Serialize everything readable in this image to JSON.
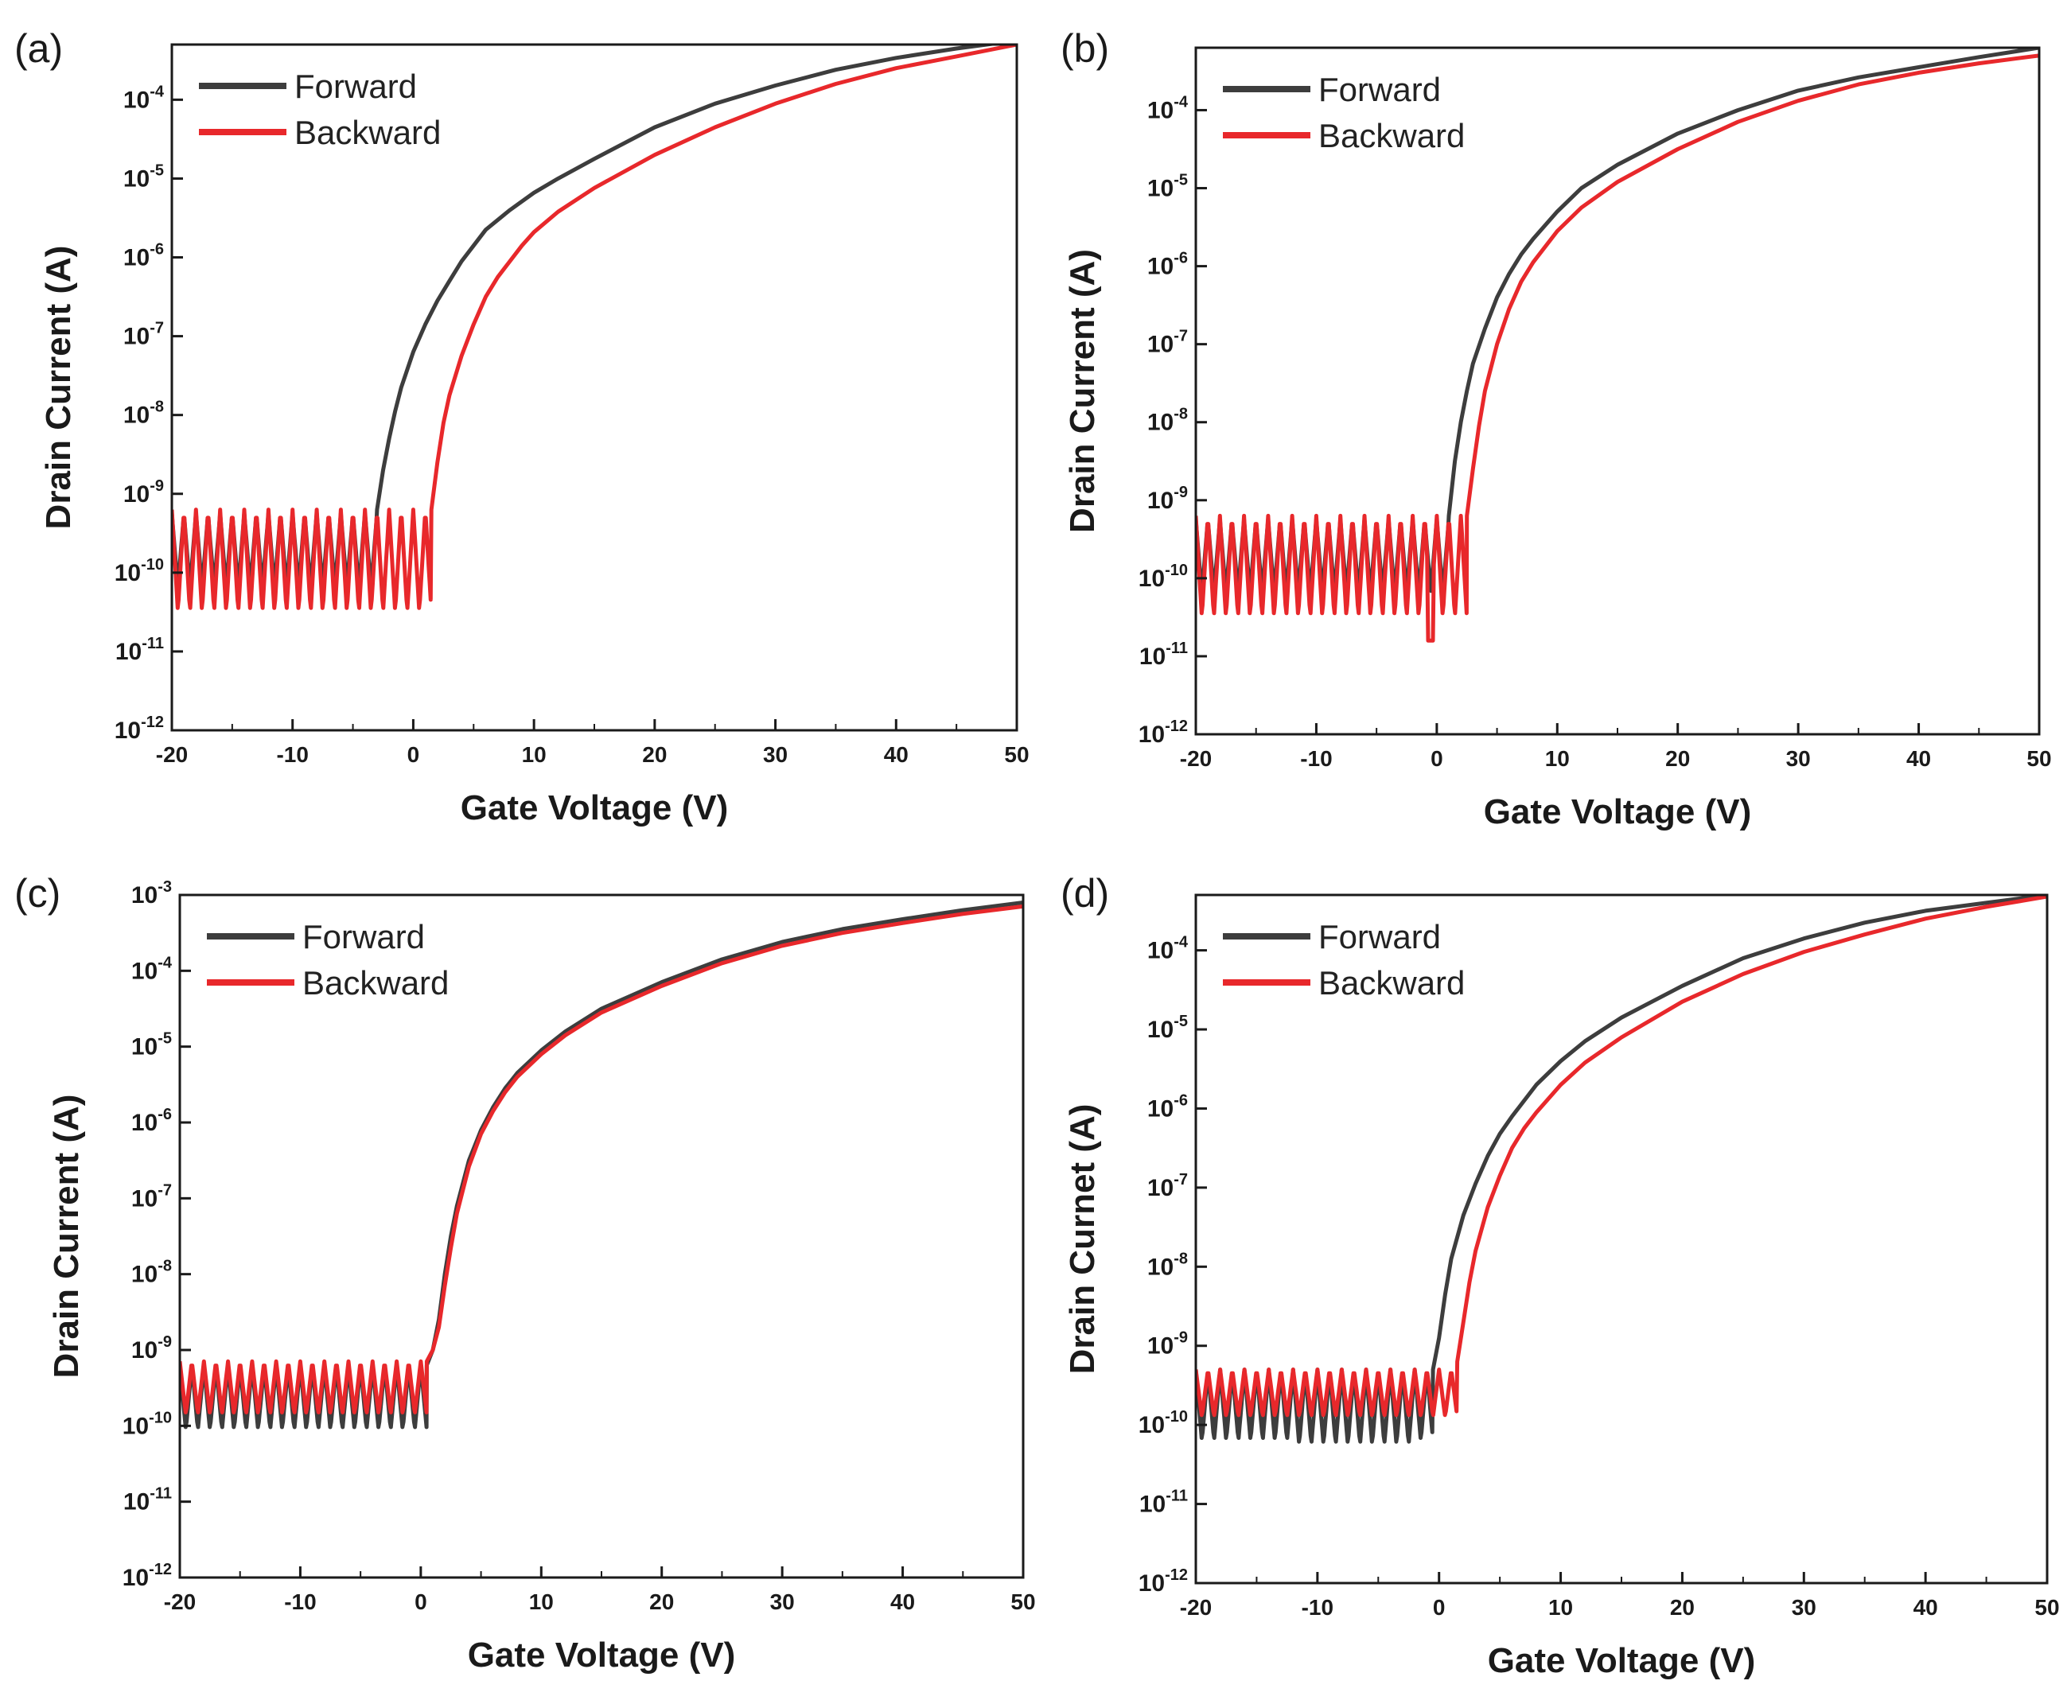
{
  "colors": {
    "forward": "#3d3d3d",
    "backward": "#e8282b",
    "axis": "#1a1a1a"
  },
  "chart_data": [
    {
      "type": "line",
      "panel_label": "(a)",
      "xlabel": "Gate Voltage (V)",
      "ylabel": "Drain Current (A)",
      "xlim": [
        -20,
        50
      ],
      "ylim_log10": [
        -12,
        -3.3
      ],
      "yscale": "log",
      "xticks": [
        -20,
        -10,
        0,
        10,
        20,
        30,
        40,
        50
      ],
      "yticks_exp": [
        -12,
        -11,
        -10,
        -9,
        -8,
        -7,
        -6,
        -5,
        -4
      ],
      "legend_position": "top-left",
      "series": [
        {
          "name": "Forward",
          "noise": {
            "x_end": -3,
            "low_log": -10.2,
            "high_log": -9.25,
            "period": 1.0
          },
          "x": [
            -3,
            -2.5,
            -2,
            -1.5,
            -1,
            0,
            1,
            2,
            3,
            4,
            5,
            6,
            8,
            10,
            12,
            15,
            20,
            25,
            30,
            35,
            40,
            45,
            50
          ],
          "y_log10": [
            -9.2,
            -8.7,
            -8.3,
            -7.95,
            -7.65,
            -7.2,
            -6.85,
            -6.55,
            -6.3,
            -6.05,
            -5.85,
            -5.65,
            -5.4,
            -5.18,
            -5.0,
            -4.75,
            -4.35,
            -4.05,
            -3.82,
            -3.62,
            -3.47,
            -3.35,
            -3.25
          ]
        },
        {
          "name": "Backward",
          "noise": {
            "x_end": 1.5,
            "low_log": -10.5,
            "high_log": -9.2,
            "period": 1.0
          },
          "x": [
            1.5,
            2,
            2.5,
            3,
            4,
            5,
            6,
            7,
            8,
            9,
            10,
            12,
            15,
            20,
            25,
            30,
            35,
            40,
            45,
            50
          ],
          "y_log10": [
            -9.2,
            -8.6,
            -8.1,
            -7.75,
            -7.25,
            -6.85,
            -6.5,
            -6.25,
            -6.05,
            -5.85,
            -5.68,
            -5.42,
            -5.12,
            -4.7,
            -4.35,
            -4.05,
            -3.8,
            -3.6,
            -3.45,
            -3.3
          ]
        }
      ]
    },
    {
      "type": "line",
      "panel_label": "(b)",
      "xlabel": "Gate Voltage (V)",
      "ylabel": "Drain Current (A)",
      "xlim": [
        -20,
        50
      ],
      "ylim_log10": [
        -12,
        -3.2
      ],
      "yscale": "log",
      "xticks": [
        -20,
        -10,
        0,
        10,
        20,
        30,
        40,
        50
      ],
      "yticks_exp": [
        -12,
        -11,
        -10,
        -9,
        -8,
        -7,
        -6,
        -5,
        -4
      ],
      "legend_position": "top-left",
      "series": [
        {
          "name": "Forward",
          "noise": {
            "x_end": 1,
            "low_log": -10.2,
            "high_log": -9.25,
            "period": 1.0
          },
          "x": [
            1,
            1.5,
            2,
            2.5,
            3,
            4,
            5,
            6,
            7,
            8,
            10,
            12,
            15,
            20,
            25,
            30,
            35,
            40,
            45,
            50
          ],
          "y_log10": [
            -9.2,
            -8.5,
            -8.0,
            -7.6,
            -7.25,
            -6.8,
            -6.4,
            -6.1,
            -5.85,
            -5.65,
            -5.3,
            -5.0,
            -4.7,
            -4.3,
            -4.0,
            -3.75,
            -3.58,
            -3.45,
            -3.32,
            -3.2
          ]
        },
        {
          "name": "Backward",
          "noise": {
            "x_end": 2.5,
            "low_log": -10.5,
            "high_log": -9.2,
            "period": 1.0,
            "dip_x": -0.5,
            "dip_log": -10.8
          },
          "x": [
            2.5,
            3,
            3.5,
            4,
            5,
            6,
            7,
            8,
            10,
            12,
            15,
            20,
            25,
            30,
            35,
            40,
            45,
            50
          ],
          "y_log10": [
            -9.2,
            -8.6,
            -8.05,
            -7.6,
            -7.0,
            -6.55,
            -6.2,
            -5.95,
            -5.55,
            -5.25,
            -4.92,
            -4.5,
            -4.15,
            -3.88,
            -3.67,
            -3.52,
            -3.4,
            -3.3
          ]
        }
      ]
    },
    {
      "type": "line",
      "panel_label": "(c)",
      "xlabel": "Gate Voltage (V)",
      "ylabel": "Drain Current (A)",
      "xlim": [
        -20,
        50
      ],
      "ylim_log10": [
        -12,
        -3
      ],
      "yscale": "log",
      "xticks": [
        -20,
        -10,
        0,
        10,
        20,
        30,
        40,
        50
      ],
      "yticks_exp": [
        -12,
        -11,
        -10,
        -9,
        -8,
        -7,
        -6,
        -5,
        -4,
        -3
      ],
      "legend_position": "top-left",
      "series": [
        {
          "name": "Forward",
          "noise": {
            "x_end": 0.5,
            "low_log": -10.05,
            "high_log": -9.2,
            "period": 1.0
          },
          "x": [
            0.5,
            1,
            1.5,
            2,
            2.5,
            3,
            4,
            5,
            6,
            7,
            8,
            10,
            12,
            15,
            20,
            25,
            30,
            35,
            40,
            45,
            50
          ],
          "y_log10": [
            -9.2,
            -9.0,
            -8.6,
            -8.0,
            -7.5,
            -7.1,
            -6.5,
            -6.1,
            -5.8,
            -5.55,
            -5.35,
            -5.05,
            -4.8,
            -4.5,
            -4.15,
            -3.85,
            -3.62,
            -3.45,
            -3.32,
            -3.2,
            -3.1
          ]
        },
        {
          "name": "Backward",
          "noise": {
            "x_end": 0.5,
            "low_log": -9.85,
            "high_log": -9.15,
            "period": 1.0
          },
          "x": [
            0.5,
            1,
            1.5,
            2,
            2.5,
            3,
            4,
            5,
            6,
            7,
            8,
            10,
            12,
            15,
            20,
            25,
            30,
            35,
            40,
            45,
            50
          ],
          "y_log10": [
            -9.15,
            -9.0,
            -8.7,
            -8.15,
            -7.65,
            -7.2,
            -6.58,
            -6.15,
            -5.85,
            -5.6,
            -5.4,
            -5.1,
            -4.85,
            -4.55,
            -4.2,
            -3.9,
            -3.67,
            -3.5,
            -3.37,
            -3.25,
            -3.15
          ]
        }
      ]
    },
    {
      "type": "line",
      "panel_label": "(d)",
      "xlabel": "Gate Voltage (V)",
      "ylabel": "Drain Curnet (A)",
      "xlim": [
        -20,
        50
      ],
      "ylim_log10": [
        -12,
        -3.3
      ],
      "yscale": "log",
      "xticks": [
        -20,
        -10,
        0,
        10,
        20,
        30,
        40,
        50
      ],
      "yticks_exp": [
        -12,
        -11,
        -10,
        -9,
        -8,
        -7,
        -6,
        -5,
        -4
      ],
      "legend_position": "top-left",
      "series": [
        {
          "name": "Forward",
          "noise": {
            "x_end": -0.5,
            "low_log": -10.2,
            "high_log": -9.3,
            "period": 1.0,
            "deep_from": -12,
            "deep_to": -2,
            "deep_log": -10.25
          },
          "x": [
            -0.5,
            0,
            0.5,
            1,
            2,
            3,
            4,
            5,
            6,
            8,
            10,
            12,
            15,
            20,
            25,
            30,
            35,
            40,
            45,
            50
          ],
          "y_log10": [
            -9.3,
            -8.9,
            -8.35,
            -7.9,
            -7.35,
            -6.95,
            -6.6,
            -6.32,
            -6.1,
            -5.7,
            -5.4,
            -5.15,
            -4.85,
            -4.45,
            -4.1,
            -3.85,
            -3.65,
            -3.5,
            -3.4,
            -3.3
          ]
        },
        {
          "name": "Backward",
          "noise": {
            "x_end": 1.5,
            "low_log": -9.9,
            "high_log": -9.3,
            "period": 1.0
          },
          "x": [
            1.5,
            2,
            2.5,
            3,
            4,
            5,
            6,
            7,
            8,
            10,
            12,
            15,
            20,
            25,
            30,
            35,
            40,
            45,
            50
          ],
          "y_log10": [
            -9.2,
            -8.7,
            -8.2,
            -7.8,
            -7.25,
            -6.85,
            -6.5,
            -6.25,
            -6.05,
            -5.7,
            -5.42,
            -5.1,
            -4.65,
            -4.3,
            -4.02,
            -3.8,
            -3.6,
            -3.45,
            -3.32
          ]
        }
      ]
    }
  ]
}
